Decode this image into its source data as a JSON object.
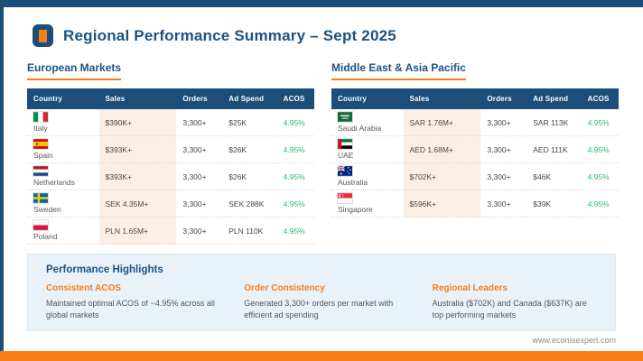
{
  "page": {
    "title": "Regional Performance Summary – Sept 2025",
    "footer_url": "www.ecomsexpert.com"
  },
  "colors": {
    "navy": "#1c4e79",
    "orange": "#f87d17",
    "acos_green": "#2eb872",
    "sales_column_bg": "#fdeee3",
    "highlights_panel_bg": "#e9f1f9"
  },
  "tables": [
    {
      "section_title": "European Markets",
      "columns": [
        "Country",
        "Sales",
        "Orders",
        "Ad Spend",
        "ACOS"
      ],
      "rows": [
        {
          "flag": "it",
          "country": "Italy",
          "sales": "$390K+",
          "orders": "3,300+",
          "ad_spend": "$25K",
          "acos": "4.95%"
        },
        {
          "flag": "es",
          "country": "Spain",
          "sales": "$393K+",
          "orders": "3,300+",
          "ad_spend": "$26K",
          "acos": "4.95%"
        },
        {
          "flag": "nl",
          "country": "Netherlands",
          "sales": "$393K+",
          "orders": "3,300+",
          "ad_spend": "$26K",
          "acos": "4.95%"
        },
        {
          "flag": "se",
          "country": "Sweden",
          "sales": "SEK 4.35M+",
          "orders": "3,300+",
          "ad_spend": "SEK 288K",
          "acos": "4.95%"
        },
        {
          "flag": "pl",
          "country": "Poland",
          "sales": "PLN 1.65M+",
          "orders": "3,300+",
          "ad_spend": "PLN 110K",
          "acos": "4.95%"
        }
      ]
    },
    {
      "section_title": "Middle East & Asia Pacific",
      "columns": [
        "Country",
        "Sales",
        "Orders",
        "Ad Spend",
        "ACOS"
      ],
      "rows": [
        {
          "flag": "sa",
          "country": "Saudi Arabia",
          "sales": "SAR 1.76M+",
          "orders": "3,300+",
          "ad_spend": "SAR 113K",
          "acos": "4.95%"
        },
        {
          "flag": "ae",
          "country": "UAE",
          "sales": "AED 1.68M+",
          "orders": "3,300+",
          "ad_spend": "AED 111K",
          "acos": "4.95%"
        },
        {
          "flag": "au",
          "country": "Australia",
          "sales": "$702K+",
          "orders": "3,300+",
          "ad_spend": "$46K",
          "acos": "4.95%"
        },
        {
          "flag": "sg",
          "country": "Singapore",
          "sales": "$596K+",
          "orders": "3,300+",
          "ad_spend": "$39K",
          "acos": "4.95%"
        }
      ]
    }
  ],
  "highlights": {
    "title": "Performance Highlights",
    "items": [
      {
        "heading": "Consistent ACOS",
        "text": "Maintained optimal ACOS of ~4.95% across all global markets"
      },
      {
        "heading": "Order Consistency",
        "text": "Generated 3,300+ orders per market with efficient ad spending"
      },
      {
        "heading": "Regional Leaders",
        "text": "Australia ($702K) and Canada ($637K) are top performing markets"
      }
    ]
  }
}
